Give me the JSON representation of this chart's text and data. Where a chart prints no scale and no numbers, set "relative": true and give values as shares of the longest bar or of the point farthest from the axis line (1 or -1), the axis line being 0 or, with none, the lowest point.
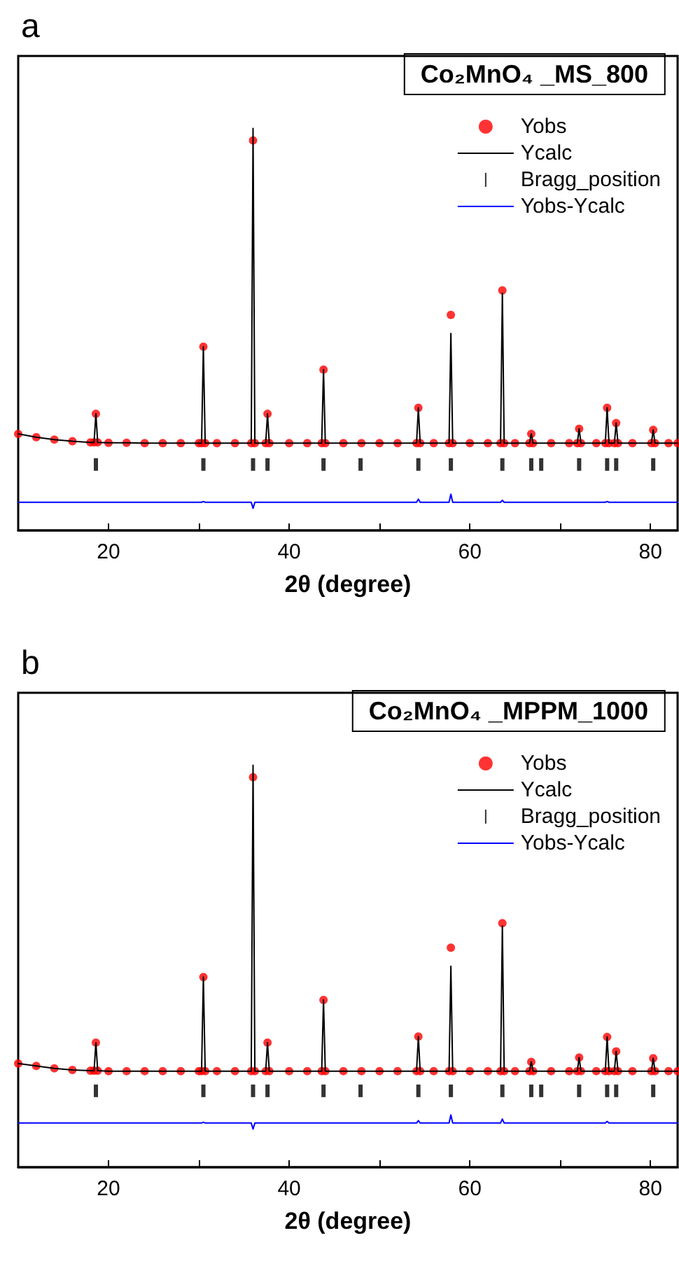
{
  "chart_data": [
    {
      "type": "line",
      "title": "a",
      "annotations": [
        "Co₂MnO₄ _MS_800"
      ],
      "xlabel": "2θ (degree)",
      "relative": true,
      "legend": "top right",
      "grid": false,
      "xlim": [
        10,
        83
      ],
      "xticks": [
        20,
        {
          "value": 30,
          "label": null
        },
        40,
        {
          "value": 50,
          "label": null
        },
        60,
        {
          "value": 70,
          "label": null
        },
        80
      ],
      "x": [
        10,
        12,
        14,
        16,
        18,
        18.4,
        18.6,
        18.8,
        20,
        22,
        24,
        26,
        28,
        30,
        30.3,
        30.5,
        30.7,
        32,
        34,
        35.8,
        36.0,
        36.2,
        37.4,
        37.6,
        37.8,
        40,
        42,
        43.6,
        43.8,
        44.0,
        46,
        48,
        50,
        52,
        54.1,
        54.3,
        54.5,
        56,
        57.7,
        57.9,
        58.1,
        60,
        62,
        63.4,
        63.6,
        63.8,
        65,
        66.6,
        66.8,
        67.0,
        69,
        71,
        71.9,
        72.1,
        72.3,
        74,
        75.0,
        75.2,
        75.4,
        76.0,
        76.2,
        76.4,
        78,
        80.1,
        80.3,
        80.5,
        82,
        83
      ],
      "series": [
        {
          "name": "Yobs",
          "type": "scatter",
          "marker": "circle",
          "color": "#ff0000",
          "values": [
            0.24,
            0.232,
            0.226,
            0.222,
            0.219,
            0.219,
            0.29,
            0.219,
            0.218,
            0.218,
            0.217,
            0.217,
            0.217,
            0.217,
            0.217,
            0.457,
            0.217,
            0.217,
            0.217,
            0.217,
            0.97,
            0.217,
            0.217,
            0.29,
            0.217,
            0.217,
            0.217,
            0.217,
            0.4,
            0.217,
            0.217,
            0.217,
            0.217,
            0.217,
            0.217,
            0.305,
            0.217,
            0.217,
            0.217,
            0.536,
            0.217,
            0.217,
            0.217,
            0.217,
            0.597,
            0.217,
            0.217,
            0.217,
            0.24,
            0.217,
            0.217,
            0.217,
            0.217,
            0.253,
            0.217,
            0.217,
            0.217,
            0.305,
            0.217,
            0.217,
            0.267,
            0.217,
            0.217,
            0.217,
            0.25,
            0.217,
            0.217,
            0.217
          ]
        },
        {
          "name": "Ycalc",
          "marker": "none",
          "line_style": "solid",
          "color": "#000000",
          "values": [
            0.24,
            0.232,
            0.226,
            0.222,
            0.219,
            0.219,
            0.29,
            0.219,
            0.218,
            0.218,
            0.217,
            0.217,
            0.217,
            0.217,
            0.217,
            0.457,
            0.217,
            0.217,
            0.217,
            0.217,
            1.0,
            0.217,
            0.217,
            0.29,
            0.217,
            0.217,
            0.217,
            0.217,
            0.4,
            0.217,
            0.217,
            0.217,
            0.217,
            0.217,
            0.217,
            0.305,
            0.217,
            0.217,
            0.217,
            0.49,
            0.217,
            0.217,
            0.217,
            0.217,
            0.59,
            0.217,
            0.217,
            0.217,
            0.24,
            0.217,
            0.217,
            0.217,
            0.217,
            0.253,
            0.217,
            0.217,
            0.217,
            0.305,
            0.217,
            0.217,
            0.267,
            0.217,
            0.217,
            0.217,
            0.25,
            0.217,
            0.217,
            0.217
          ]
        },
        {
          "name": "Bragg_position",
          "type": "scatter",
          "color": "#000000",
          "x": [
            18.6,
            30.5,
            36.0,
            37.6,
            43.8,
            47.9,
            54.3,
            57.9,
            63.6,
            66.8,
            67.9,
            72.1,
            75.2,
            76.2,
            80.3
          ],
          "values": [
            0.164,
            0.164,
            0.164,
            0.164,
            0.164,
            0.164,
            0.164,
            0.164,
            0.164,
            0.164,
            0.164,
            0.164,
            0.164,
            0.164,
            0.164
          ]
        },
        {
          "name": "Yobs-Ycalc",
          "type": "line",
          "marker": "none",
          "line_style": "solid",
          "color": "#0000ff",
          "values": [
            0.07,
            0.07,
            0.07,
            0.07,
            0.07,
            0.07,
            0.07,
            0.07,
            0.07,
            0.07,
            0.07,
            0.07,
            0.07,
            0.07,
            0.07,
            0.072,
            0.07,
            0.07,
            0.07,
            0.07,
            0.055,
            0.07,
            0.07,
            0.07,
            0.07,
            0.07,
            0.07,
            0.07,
            0.07,
            0.07,
            0.07,
            0.07,
            0.07,
            0.07,
            0.07,
            0.078,
            0.07,
            0.07,
            0.07,
            0.09,
            0.07,
            0.07,
            0.07,
            0.07,
            0.075,
            0.07,
            0.07,
            0.07,
            0.07,
            0.07,
            0.07,
            0.07,
            0.07,
            0.07,
            0.07,
            0.07,
            0.07,
            0.072,
            0.07,
            0.07,
            0.07,
            0.07,
            0.07,
            0.07,
            0.07,
            0.07,
            0.07,
            0.07
          ]
        }
      ]
    },
    {
      "type": "line",
      "title": "b",
      "annotations": [
        "Co₂MnO₄ _MPPM_1000"
      ],
      "xlabel": "2θ (degree)",
      "relative": true,
      "legend": "top right",
      "grid": false,
      "xlim": [
        10,
        83
      ],
      "xticks": [
        20,
        {
          "value": 30,
          "label": null
        },
        40,
        {
          "value": 50,
          "label": null
        },
        60,
        {
          "value": 70,
          "label": null
        },
        80
      ],
      "x": [
        10,
        12,
        14,
        16,
        18,
        18.4,
        18.6,
        18.8,
        20,
        22,
        24,
        26,
        28,
        30,
        30.3,
        30.5,
        30.7,
        32,
        34,
        35.8,
        36.0,
        36.2,
        37.4,
        37.6,
        37.8,
        40,
        42,
        43.6,
        43.8,
        44.0,
        46,
        48,
        50,
        52,
        54.1,
        54.3,
        54.5,
        56,
        57.7,
        57.9,
        58.1,
        60,
        62,
        63.4,
        63.6,
        63.8,
        65,
        66.6,
        66.8,
        67.0,
        69,
        71,
        71.9,
        72.1,
        72.3,
        74,
        75.0,
        75.2,
        75.4,
        76.0,
        76.2,
        76.4,
        78,
        80.1,
        80.3,
        80.5,
        82,
        83
      ],
      "series": [
        {
          "name": "Yobs",
          "type": "scatter",
          "marker": "circle",
          "color": "#ff0000",
          "values": [
            0.258,
            0.252,
            0.246,
            0.242,
            0.24,
            0.24,
            0.31,
            0.24,
            0.239,
            0.239,
            0.239,
            0.239,
            0.239,
            0.239,
            0.239,
            0.473,
            0.239,
            0.239,
            0.239,
            0.239,
            0.97,
            0.239,
            0.239,
            0.31,
            0.239,
            0.239,
            0.239,
            0.239,
            0.416,
            0.239,
            0.239,
            0.239,
            0.239,
            0.239,
            0.239,
            0.325,
            0.239,
            0.239,
            0.239,
            0.546,
            0.239,
            0.239,
            0.239,
            0.239,
            0.607,
            0.239,
            0.239,
            0.239,
            0.262,
            0.239,
            0.239,
            0.239,
            0.239,
            0.273,
            0.239,
            0.239,
            0.239,
            0.324,
            0.239,
            0.239,
            0.288,
            0.239,
            0.239,
            0.239,
            0.271,
            0.239,
            0.239,
            0.239
          ]
        },
        {
          "name": "Ycalc",
          "marker": "none",
          "line_style": "solid",
          "color": "#000000",
          "values": [
            0.258,
            0.252,
            0.246,
            0.242,
            0.24,
            0.24,
            0.31,
            0.24,
            0.239,
            0.239,
            0.239,
            0.239,
            0.239,
            0.239,
            0.239,
            0.473,
            0.239,
            0.239,
            0.239,
            0.239,
            1.0,
            0.239,
            0.239,
            0.31,
            0.239,
            0.239,
            0.239,
            0.239,
            0.416,
            0.239,
            0.239,
            0.239,
            0.239,
            0.239,
            0.239,
            0.325,
            0.239,
            0.239,
            0.239,
            0.5,
            0.239,
            0.239,
            0.239,
            0.239,
            0.6,
            0.239,
            0.239,
            0.239,
            0.262,
            0.239,
            0.239,
            0.239,
            0.239,
            0.273,
            0.239,
            0.239,
            0.239,
            0.324,
            0.239,
            0.239,
            0.288,
            0.239,
            0.239,
            0.239,
            0.271,
            0.239,
            0.239,
            0.239
          ]
        },
        {
          "name": "Bragg_position",
          "type": "scatter",
          "color": "#000000",
          "x": [
            18.6,
            30.5,
            36.0,
            37.6,
            43.8,
            47.9,
            54.3,
            57.9,
            63.6,
            66.8,
            67.9,
            72.1,
            75.2,
            76.2,
            80.3
          ],
          "values": [
            0.19,
            0.19,
            0.19,
            0.19,
            0.19,
            0.19,
            0.19,
            0.19,
            0.19,
            0.19,
            0.19,
            0.19,
            0.19,
            0.19,
            0.19
          ]
        },
        {
          "name": "Yobs-Ycalc",
          "type": "line",
          "marker": "none",
          "line_style": "solid",
          "color": "#0000ff",
          "values": [
            0.11,
            0.11,
            0.11,
            0.11,
            0.11,
            0.11,
            0.11,
            0.11,
            0.11,
            0.11,
            0.11,
            0.11,
            0.11,
            0.11,
            0.11,
            0.112,
            0.11,
            0.11,
            0.11,
            0.11,
            0.095,
            0.11,
            0.11,
            0.11,
            0.11,
            0.11,
            0.11,
            0.11,
            0.11,
            0.11,
            0.11,
            0.11,
            0.11,
            0.11,
            0.11,
            0.116,
            0.11,
            0.11,
            0.11,
            0.13,
            0.11,
            0.11,
            0.11,
            0.11,
            0.12,
            0.11,
            0.11,
            0.11,
            0.11,
            0.11,
            0.11,
            0.11,
            0.11,
            0.11,
            0.11,
            0.11,
            0.11,
            0.114,
            0.11,
            0.11,
            0.11,
            0.11,
            0.11,
            0.11,
            0.11,
            0.11,
            0.11,
            0.11
          ]
        }
      ]
    }
  ]
}
